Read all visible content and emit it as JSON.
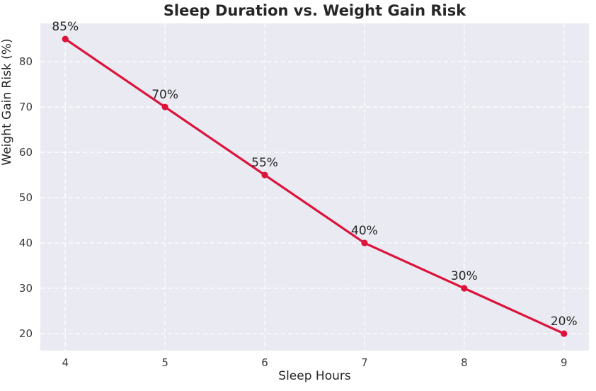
{
  "chart_data": {
    "type": "line",
    "title": "Sleep Duration vs. Weight Gain Risk",
    "xlabel": "Sleep Hours",
    "ylabel": "Weight Gain Risk (%)",
    "x": [
      4,
      5,
      6,
      7,
      8,
      9
    ],
    "values": [
      85,
      70,
      55,
      40,
      30,
      20
    ],
    "point_labels": [
      "85%",
      "70%",
      "55%",
      "40%",
      "30%",
      "20%"
    ],
    "xticks": [
      "4",
      "5",
      "6",
      "7",
      "8",
      "9"
    ],
    "xtick_values": [
      4,
      5,
      6,
      7,
      8,
      9
    ],
    "yticks": [
      "20",
      "30",
      "40",
      "50",
      "60",
      "70",
      "80"
    ],
    "ytick_values": [
      20,
      30,
      40,
      50,
      60,
      70,
      80
    ],
    "xlim": [
      3.75,
      9.25
    ],
    "ylim": [
      16.25,
      88.45
    ],
    "grid": true,
    "grid_style": "dashed",
    "legend": "none",
    "colors": {
      "line": "#DC143C",
      "marker": "#DC143C",
      "plot_background": "#EAEAF2",
      "figure_background": "#FFFFFF",
      "gridline": "#FFFFFF",
      "title_text": "#262626",
      "label_text": "#262626",
      "tick_text": "#3d3d3d",
      "annotation_text": "#262626"
    }
  }
}
